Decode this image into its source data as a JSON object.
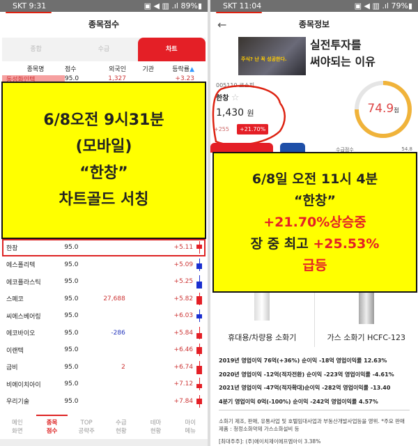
{
  "left": {
    "status": {
      "carrier_time": "SKT 9:31",
      "battery": "89%"
    },
    "title": "종목점수",
    "tabs": [
      {
        "label": "종합"
      },
      {
        "label": "수급"
      },
      {
        "label": "차트",
        "active": true
      }
    ],
    "columns": [
      "종목명",
      "점수",
      "외국인",
      "기관",
      "등락률"
    ],
    "partial_row": {
      "name": "동성화인텍",
      "score": "95.0",
      "foreign": "1,327",
      "change": "+3.23"
    },
    "overlay": {
      "line1": "6/8오전 9시31분",
      "line2": "(모바일)",
      "line3": "“한창”",
      "line4": "차트골드 서칭"
    },
    "rows": [
      {
        "name": "한창",
        "score": "95.0",
        "foreign": "",
        "inst": "",
        "change": "+5.11",
        "candle": "red"
      },
      {
        "name": "에스폴리텍",
        "score": "95.0",
        "foreign": "",
        "inst": "",
        "change": "+5.09",
        "candle": "blue"
      },
      {
        "name": "에코플라스틱",
        "score": "95.0",
        "foreign": "",
        "inst": "",
        "change": "+5.25",
        "candle": "blue"
      },
      {
        "name": "스페코",
        "score": "95.0",
        "foreign": "27,688",
        "inst": "",
        "change": "+5.82",
        "candle": "red"
      },
      {
        "name": "씨에스베어링",
        "score": "95.0",
        "foreign": "",
        "inst": "",
        "change": "+6.03",
        "candle": "blue"
      },
      {
        "name": "에코바이오",
        "score": "95.0",
        "foreign": "-286",
        "inst": "",
        "change": "+5.84",
        "candle": "red"
      },
      {
        "name": "이랜텍",
        "score": "95.0",
        "foreign": "",
        "inst": "",
        "change": "+6.46",
        "candle": "red"
      },
      {
        "name": "금비",
        "score": "95.0",
        "foreign": "2",
        "inst": "",
        "change": "+6.74",
        "candle": "red"
      },
      {
        "name": "비에이치아이",
        "score": "95.0",
        "foreign": "",
        "inst": "",
        "change": "+7.12",
        "candle": "red"
      },
      {
        "name": "우리기술",
        "score": "95.0",
        "foreign": "",
        "inst": "",
        "change": "+7.84",
        "candle": "red"
      }
    ],
    "nav": [
      {
        "l1": "메인",
        "l2": "화면"
      },
      {
        "l1": "종목",
        "l2": "점수",
        "active": true
      },
      {
        "l1": "TOP",
        "l2": "공략주"
      },
      {
        "l1": "수급",
        "l2": "현황"
      },
      {
        "l1": "테마",
        "l2": "현황"
      },
      {
        "l1": "마이",
        "l2": "메뉴"
      }
    ]
  },
  "right": {
    "status": {
      "carrier_time": "SKT 11:04",
      "battery": "79%"
    },
    "title": "종목정보",
    "banner": {
      "image_text": "주식? 난 꼭 성공한다.",
      "headline1": "실전투자를",
      "headline2": "써야되는 이유"
    },
    "stock": {
      "code_market": "005110 코스피",
      "name": "한창",
      "price": "1,430",
      "unit": "원",
      "diff": "+255",
      "pct": "+21.70%"
    },
    "score": {
      "value": "74.9",
      "unit": "점",
      "fraction": 0.749,
      "sub_label": "수급점수",
      "sub_value": "54.8"
    },
    "overlay": {
      "line1": "6/8일 오전 11시 4분",
      "line2": "“한창”",
      "line3a": "+21.70%",
      "line3b": "상승중",
      "line4a": "장 중 최고 ",
      "line4b": "+25.53%",
      "line5": "급등"
    },
    "products": [
      "휴대용/차량용 소화기",
      "가스 소화기 HCFC-123"
    ],
    "profits": [
      "2019년 영업이익 76억(+36%) 순이익 -18억 영업이익률 12.63%",
      "2020년 영업이익 -12억(적자전환) 순이익 -223억 영업이익률 -4.61%",
      "2021년 영업이익 -47억(적자확대)순이익 -282억 영업이익률 -13.40",
      "4분기 영업이익 0억(-100%) 순이익 -242억 영업이익률 4.57%"
    ],
    "description": "소화기 제조, 판매, 유통사업 및 호텔임대사업과 부동산개발사업등을 영위. *주요 판매 제품 : 청정소화약제 가스소화설비 등",
    "shareholder": "[최대주주]: (주)에이치제이에프엠아이 3.38%"
  },
  "colors": {
    "accent": "#e41f26",
    "overlay": "#ffff00",
    "gauge": "#f0b33a",
    "up": "#cc3333",
    "down": "#2233bb"
  }
}
